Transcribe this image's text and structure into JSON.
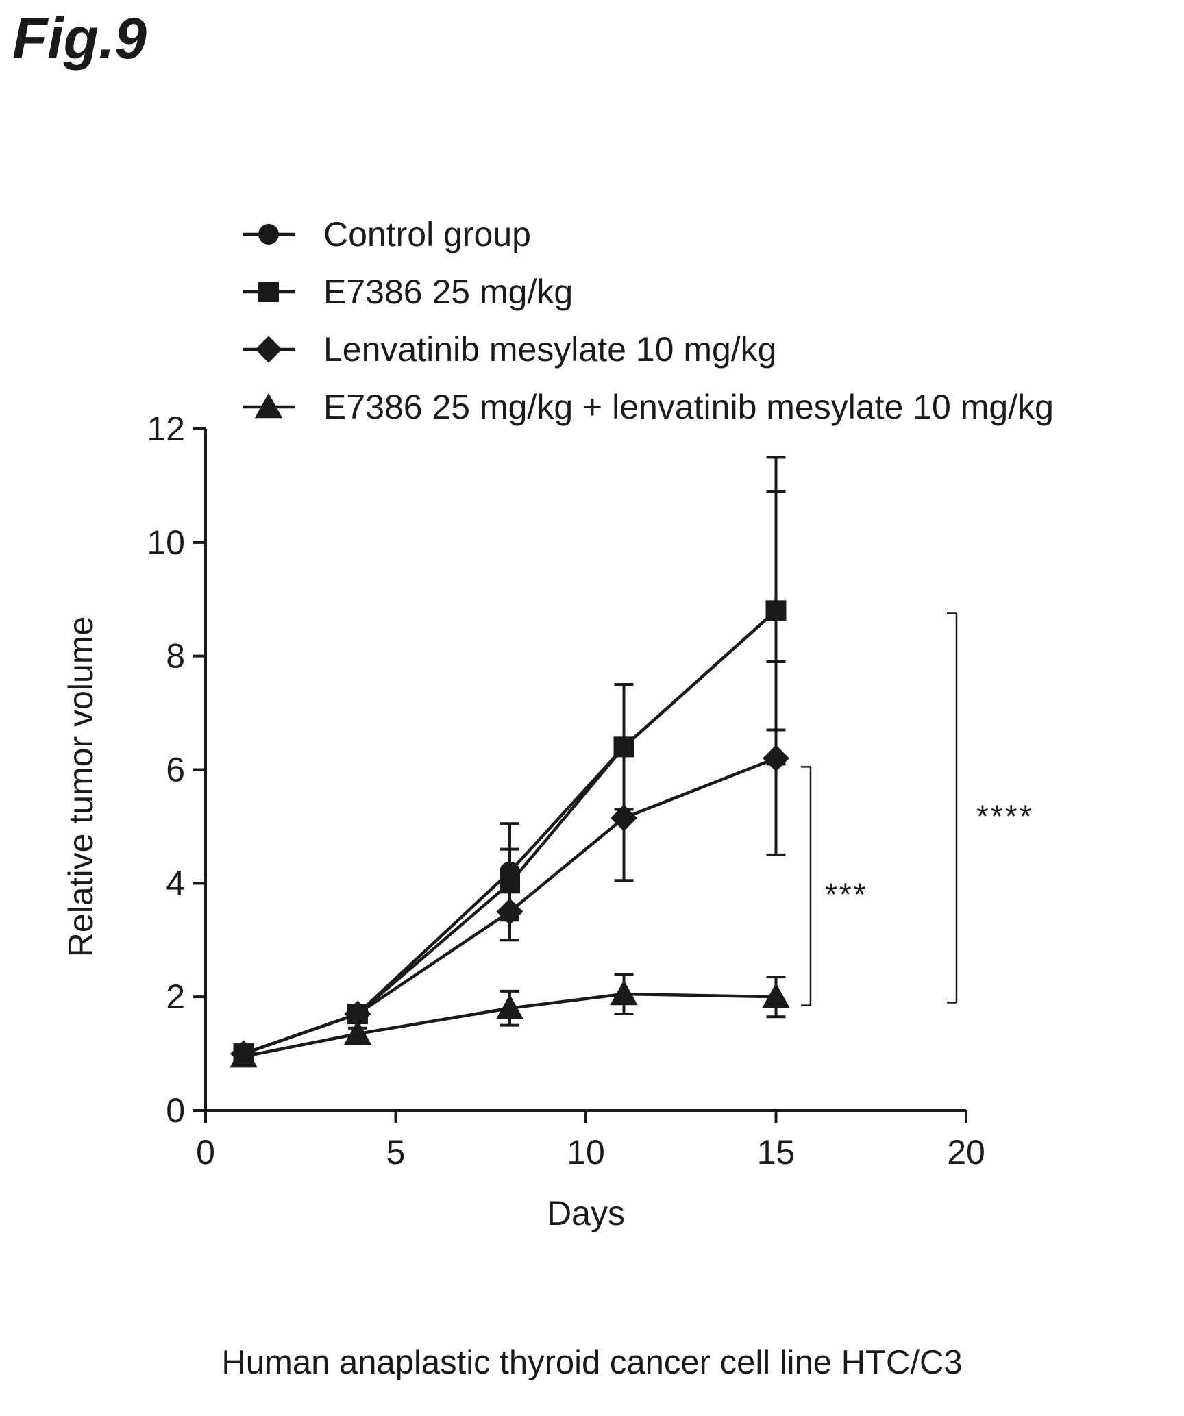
{
  "figure_label": "Fig.9",
  "caption": "Human anaplastic thyroid cancer cell line HTC/C3",
  "chart_data": {
    "type": "line",
    "title": "",
    "xlabel": "Days",
    "ylabel": "Relative tumor volume",
    "xlim": [
      0,
      20
    ],
    "ylim": [
      0,
      12
    ],
    "xticks": [
      0,
      5,
      10,
      15,
      20
    ],
    "yticks": [
      0,
      2,
      4,
      6,
      8,
      10,
      12
    ],
    "grid": false,
    "legend_position": "top",
    "x": [
      1,
      4,
      8,
      11,
      15
    ],
    "series": [
      {
        "name": "Control group",
        "marker": "circle",
        "values": [
          1.0,
          1.7,
          4.2,
          6.4,
          8.8
        ],
        "error": [
          0.1,
          0.15,
          0.85,
          1.1,
          2.1
        ]
      },
      {
        "name": "E7386 25 mg/kg",
        "marker": "square",
        "values": [
          1.0,
          1.7,
          4.0,
          6.4,
          8.8
        ],
        "error": [
          0.1,
          0.15,
          0.6,
          1.1,
          2.7
        ]
      },
      {
        "name": "Lenvatinib mesylate 10 mg/kg",
        "marker": "diamond",
        "values": [
          1.0,
          1.7,
          3.5,
          5.15,
          6.2
        ],
        "error": [
          0.1,
          0.15,
          0.5,
          1.1,
          1.7
        ]
      },
      {
        "name": "E7386 25 mg/kg + lenvatinib mesylate 10 mg/kg",
        "marker": "triangle",
        "values": [
          0.95,
          1.35,
          1.8,
          2.05,
          2.0
        ],
        "error": [
          0.1,
          0.1,
          0.3,
          0.35,
          0.35
        ]
      }
    ],
    "significance": [
      {
        "label": "***",
        "from_series": "Lenvatinib mesylate 10 mg/kg",
        "to_series": "E7386 25 mg/kg + lenvatinib mesylate 10 mg/kg",
        "y_range": [
          1.85,
          6.05
        ]
      },
      {
        "label": "****",
        "from_series": "Control group",
        "to_series": "E7386 25 mg/kg + lenvatinib mesylate 10 mg/kg",
        "y_range": [
          1.9,
          8.75
        ]
      }
    ]
  }
}
